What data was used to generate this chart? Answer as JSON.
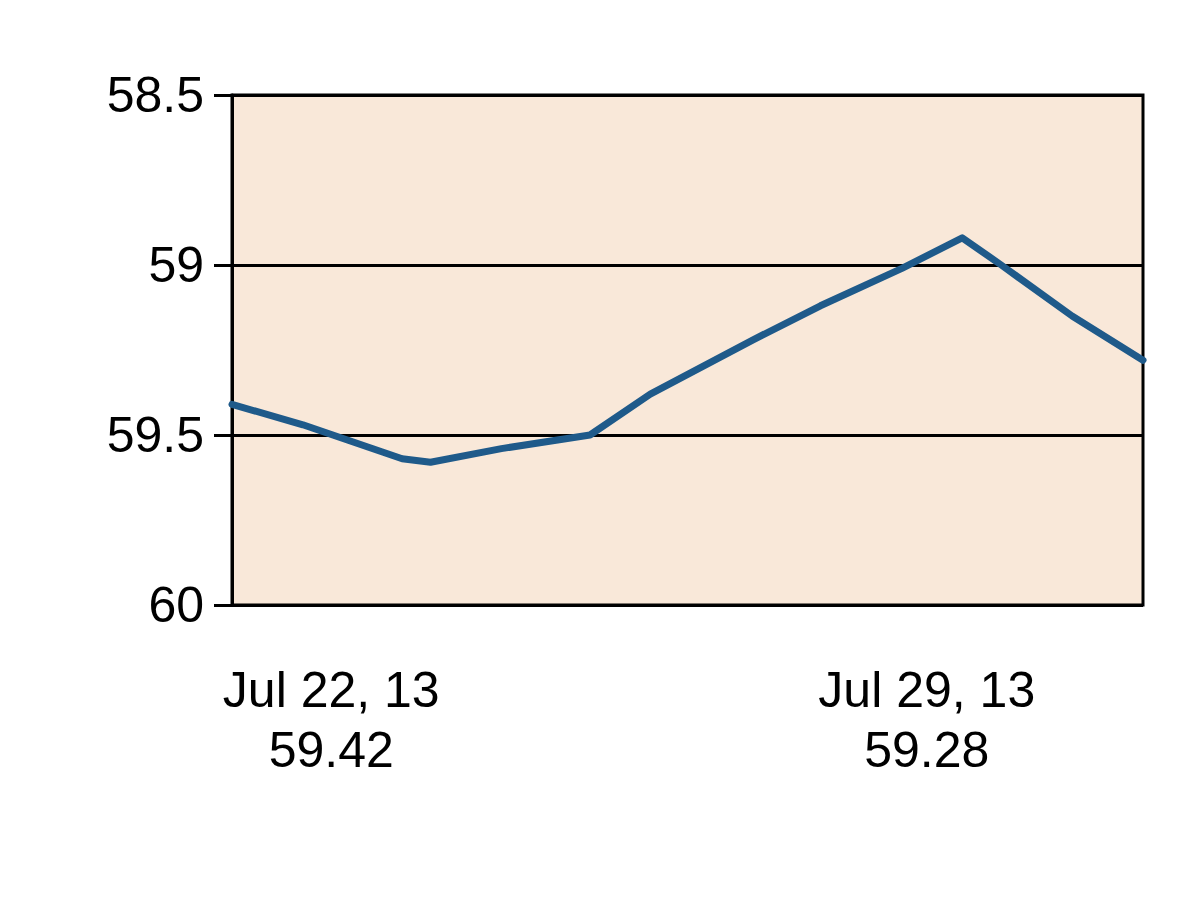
{
  "chart_data": {
    "type": "line",
    "x": [
      "--07-20T20:00",
      "--07-21T16:00",
      "--07-22T20:00",
      "--07-23T04:00",
      "--07-24T00:00",
      "--07-25T01:00",
      "--07-25T18:00",
      "--07-26T23:00",
      "--07-27T18:00",
      "--07-28T17:00",
      "--07-29T10:00",
      "--07-29T21:00",
      "--07-30T17:00",
      "--07-31T13:00"
    ],
    "series": [
      {
        "color": "#1f5a8a",
        "values": [
          59.41,
          59.47,
          59.57,
          59.58,
          59.54,
          59.5,
          59.38,
          59.22,
          59.12,
          59.01,
          58.92,
          59.0,
          59.15,
          59.28
        ]
      }
    ],
    "xlim": [
      "--07-20T20:00",
      "--07-31T13:00"
    ],
    "xticks": [
      {
        "value": "--07-22",
        "label": "Jul 22, 13\n59.42"
      },
      {
        "value": "--07-29",
        "label": "Jul 29, 13\n59.28"
      }
    ],
    "ylim": [
      60,
      58.5
    ],
    "yticks": [
      58.5,
      59,
      59.5,
      60
    ],
    "grid": "y",
    "marker": "none",
    "line_style": "solid"
  }
}
